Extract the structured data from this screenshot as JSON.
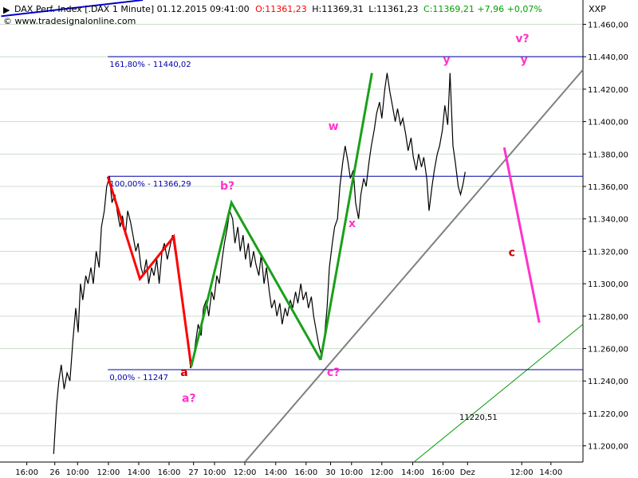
{
  "header": {
    "instrument": "DAX Perf. Index [.DAX  1 Minute] 01.12.2015 09:41:00",
    "open": "O:11361,23",
    "high": "H:11369,31",
    "low": "L:11361,23",
    "close": "C:11369,21 +7,96 +0,07%",
    "website": "© www.tradesignalonline.com",
    "axis_symbol": "XXP"
  },
  "colors": {
    "bg": "#ffffff",
    "price": "#000000",
    "fib": "#0000aa",
    "red_wave": "#ff0000",
    "green_wave": "#1aa01a",
    "magenta": "#ff33cc",
    "trend_gray": "#808080",
    "thin_green": "#009900",
    "open_red": "#ff0000",
    "close_green": "#00a000",
    "grid": "#ccddcc"
  },
  "chart_data": {
    "type": "line",
    "ylim": [
      11190,
      11475
    ],
    "y_ticks": [
      "11.460,00",
      "11.440,00",
      "11.420,00",
      "11.400,00",
      "11.380,00",
      "11.360,00",
      "11.340,00",
      "11.320,00",
      "11.300,00",
      "11.280,00",
      "11.260,00",
      "11.240,00",
      "11.220,00",
      "11.200,00"
    ],
    "y_tick_values": [
      11460,
      11440,
      11420,
      11400,
      11380,
      11360,
      11340,
      11320,
      11300,
      11280,
      11260,
      11240,
      11220,
      11200
    ],
    "x_domain": [
      0,
      100
    ],
    "x_ticks": [
      {
        "label": "16:00",
        "t": 4.6
      },
      {
        "label": "26",
        "t": 9.4
      },
      {
        "label": "10:00",
        "t": 13.3
      },
      {
        "label": "12:00",
        "t": 18.6
      },
      {
        "label": "14:00",
        "t": 23.8
      },
      {
        "label": "16:00",
        "t": 29.0
      },
      {
        "label": "27",
        "t": 33.2
      },
      {
        "label": "10:00",
        "t": 36.8
      },
      {
        "label": "12:00",
        "t": 42.0
      },
      {
        "label": "14:00",
        "t": 47.3
      },
      {
        "label": "16:00",
        "t": 52.5
      },
      {
        "label": "30",
        "t": 56.7
      },
      {
        "label": "10:00",
        "t": 60.3
      },
      {
        "label": "12:00",
        "t": 65.5
      },
      {
        "label": "14:00",
        "t": 70.8
      },
      {
        "label": "16:00",
        "t": 76.0
      },
      {
        "label": "Dez",
        "t": 80.2
      },
      {
        "label": "12:00",
        "t": 89.5
      },
      {
        "label": "14:00",
        "t": 94.5
      }
    ],
    "price_series": [
      [
        9.2,
        11195
      ],
      [
        9.7,
        11225
      ],
      [
        10.1,
        11240
      ],
      [
        10.5,
        11250
      ],
      [
        11.0,
        11235
      ],
      [
        11.5,
        11245
      ],
      [
        12.0,
        11240
      ],
      [
        12.5,
        11265
      ],
      [
        13.0,
        11285
      ],
      [
        13.4,
        11270
      ],
      [
        13.8,
        11300
      ],
      [
        14.2,
        11290
      ],
      [
        14.7,
        11305
      ],
      [
        15.1,
        11300
      ],
      [
        15.6,
        11310
      ],
      [
        16.0,
        11300
      ],
      [
        16.5,
        11320
      ],
      [
        17.0,
        11310
      ],
      [
        17.4,
        11335
      ],
      [
        17.9,
        11345
      ],
      [
        18.3,
        11360
      ],
      [
        18.8,
        11366
      ],
      [
        19.2,
        11350
      ],
      [
        19.7,
        11355
      ],
      [
        20.1,
        11345
      ],
      [
        20.6,
        11335
      ],
      [
        21.0,
        11342
      ],
      [
        21.5,
        11330
      ],
      [
        21.9,
        11345
      ],
      [
        22.4,
        11338
      ],
      [
        22.8,
        11330
      ],
      [
        23.3,
        11320
      ],
      [
        23.7,
        11325
      ],
      [
        24.2,
        11310
      ],
      [
        24.6,
        11305
      ],
      [
        25.1,
        11315
      ],
      [
        25.5,
        11300
      ],
      [
        26.0,
        11310
      ],
      [
        26.4,
        11305
      ],
      [
        26.9,
        11315
      ],
      [
        27.3,
        11300
      ],
      [
        27.8,
        11320
      ],
      [
        28.2,
        11325
      ],
      [
        28.7,
        11315
      ],
      [
        29.1,
        11322
      ],
      [
        29.6,
        11330
      ],
      [
        30.0,
        11320
      ],
      [
        30.5,
        11310
      ],
      [
        30.9,
        11300
      ],
      [
        31.4,
        11285
      ],
      [
        31.8,
        11275
      ],
      [
        32.3,
        11260
      ],
      [
        32.7,
        11248
      ],
      [
        33.1,
        11252
      ],
      [
        33.6,
        11265
      ],
      [
        34.0,
        11275
      ],
      [
        34.5,
        11268
      ],
      [
        34.9,
        11285
      ],
      [
        35.4,
        11290
      ],
      [
        35.8,
        11280
      ],
      [
        36.3,
        11295
      ],
      [
        36.7,
        11290
      ],
      [
        37.2,
        11305
      ],
      [
        37.6,
        11300
      ],
      [
        38.1,
        11315
      ],
      [
        38.5,
        11325
      ],
      [
        39.0,
        11335
      ],
      [
        39.4,
        11345
      ],
      [
        39.9,
        11340
      ],
      [
        40.3,
        11325
      ],
      [
        40.8,
        11335
      ],
      [
        41.2,
        11320
      ],
      [
        41.7,
        11330
      ],
      [
        42.1,
        11315
      ],
      [
        42.6,
        11325
      ],
      [
        43.0,
        11310
      ],
      [
        43.5,
        11320
      ],
      [
        43.9,
        11312
      ],
      [
        44.4,
        11305
      ],
      [
        44.8,
        11318
      ],
      [
        45.3,
        11300
      ],
      [
        45.7,
        11310
      ],
      [
        46.2,
        11295
      ],
      [
        46.6,
        11285
      ],
      [
        47.1,
        11290
      ],
      [
        47.5,
        11280
      ],
      [
        48.0,
        11288
      ],
      [
        48.4,
        11275
      ],
      [
        48.9,
        11285
      ],
      [
        49.3,
        11280
      ],
      [
        49.8,
        11290
      ],
      [
        50.2,
        11285
      ],
      [
        50.7,
        11295
      ],
      [
        51.1,
        11288
      ],
      [
        51.6,
        11300
      ],
      [
        52.0,
        11290
      ],
      [
        52.5,
        11295
      ],
      [
        52.9,
        11285
      ],
      [
        53.4,
        11292
      ],
      [
        53.8,
        11280
      ],
      [
        54.3,
        11270
      ],
      [
        54.7,
        11262
      ],
      [
        55.2,
        11255
      ],
      [
        55.6,
        11265
      ],
      [
        56.1,
        11285
      ],
      [
        56.5,
        11310
      ],
      [
        57.0,
        11325
      ],
      [
        57.4,
        11335
      ],
      [
        57.9,
        11340
      ],
      [
        58.3,
        11360
      ],
      [
        58.8,
        11375
      ],
      [
        59.2,
        11385
      ],
      [
        59.7,
        11375
      ],
      [
        60.1,
        11365
      ],
      [
        60.6,
        11370
      ],
      [
        61.0,
        11350
      ],
      [
        61.5,
        11340
      ],
      [
        61.9,
        11355
      ],
      [
        62.4,
        11365
      ],
      [
        62.8,
        11360
      ],
      [
        63.3,
        11375
      ],
      [
        63.7,
        11385
      ],
      [
        64.2,
        11395
      ],
      [
        64.6,
        11405
      ],
      [
        65.1,
        11412
      ],
      [
        65.5,
        11402
      ],
      [
        66.0,
        11420
      ],
      [
        66.4,
        11430
      ],
      [
        66.9,
        11418
      ],
      [
        67.3,
        11410
      ],
      [
        67.8,
        11400
      ],
      [
        68.2,
        11408
      ],
      [
        68.7,
        11398
      ],
      [
        69.1,
        11402
      ],
      [
        69.6,
        11392
      ],
      [
        70.0,
        11382
      ],
      [
        70.5,
        11390
      ],
      [
        70.9,
        11378
      ],
      [
        71.4,
        11370
      ],
      [
        71.8,
        11380
      ],
      [
        72.3,
        11372
      ],
      [
        72.7,
        11378
      ],
      [
        73.2,
        11365
      ],
      [
        73.6,
        11345
      ],
      [
        74.1,
        11360
      ],
      [
        74.5,
        11370
      ],
      [
        75.0,
        11380
      ],
      [
        75.4,
        11385
      ],
      [
        75.9,
        11395
      ],
      [
        76.3,
        11410
      ],
      [
        76.8,
        11398
      ],
      [
        77.2,
        11430
      ],
      [
        77.7,
        11385
      ],
      [
        78.1,
        11375
      ],
      [
        78.6,
        11360
      ],
      [
        79.0,
        11355
      ],
      [
        79.4,
        11361
      ],
      [
        79.8,
        11369
      ]
    ],
    "fib_levels": [
      {
        "label": "161,80% - 11440,02",
        "value": 11440.02
      },
      {
        "label": "100,00% - 11366,29",
        "value": 11366.29
      },
      {
        "label": "0,00% - 11247",
        "value": 11247
      }
    ],
    "red_wave": [
      [
        18.5,
        11366
      ],
      [
        24.0,
        11303
      ],
      [
        29.8,
        11329
      ],
      [
        32.8,
        11249
      ]
    ],
    "green_waves": [
      [
        [
          32.8,
          11249
        ],
        [
          39.7,
          11350
        ],
        [
          55.0,
          11253
        ]
      ],
      [
        [
          55.0,
          11253
        ],
        [
          63.8,
          11430
        ]
      ]
    ],
    "magenta_projection": [
      [
        86.5,
        11384
      ],
      [
        92.5,
        11276
      ]
    ],
    "trendlines": [
      {
        "name": "gray",
        "from": [
          42.0,
          11190
        ],
        "to": [
          100,
          11432
        ],
        "color": "#808080"
      },
      {
        "name": "thin_green",
        "from": [
          71.0,
          11190
        ],
        "to": [
          100,
          11275
        ],
        "color": "#009900"
      },
      {
        "name": "blue_top",
        "from": [
          0.2,
          11465
        ],
        "to": [
          24.5,
          11475
        ],
        "color": "#0000cc"
      }
    ],
    "wave_labels": [
      {
        "text": "a",
        "t": 31.6,
        "v": 11243,
        "color": "#cc0000"
      },
      {
        "text": "a?",
        "t": 32.4,
        "v": 11227,
        "color": "#ff33cc"
      },
      {
        "text": "b?",
        "t": 39.0,
        "v": 11358,
        "color": "#ff33cc"
      },
      {
        "text": "w",
        "t": 57.2,
        "v": 11395,
        "color": "#ff33cc"
      },
      {
        "text": "x",
        "t": 60.4,
        "v": 11335,
        "color": "#ff33cc"
      },
      {
        "text": "c?",
        "t": 57.2,
        "v": 11243,
        "color": "#ff33cc"
      },
      {
        "text": "y",
        "t": 76.6,
        "v": 11436,
        "color": "#ff33cc"
      },
      {
        "text": "v?",
        "t": 89.6,
        "v": 11449,
        "color": "#ff33cc"
      },
      {
        "text": "y",
        "t": 89.9,
        "v": 11436,
        "color": "#ff33cc"
      },
      {
        "text": "c",
        "t": 87.8,
        "v": 11317,
        "color": "#cc0000"
      }
    ],
    "annotations": [
      {
        "text": "11220,51",
        "t": 78.8,
        "v": 11216,
        "color": "#009900"
      }
    ]
  }
}
